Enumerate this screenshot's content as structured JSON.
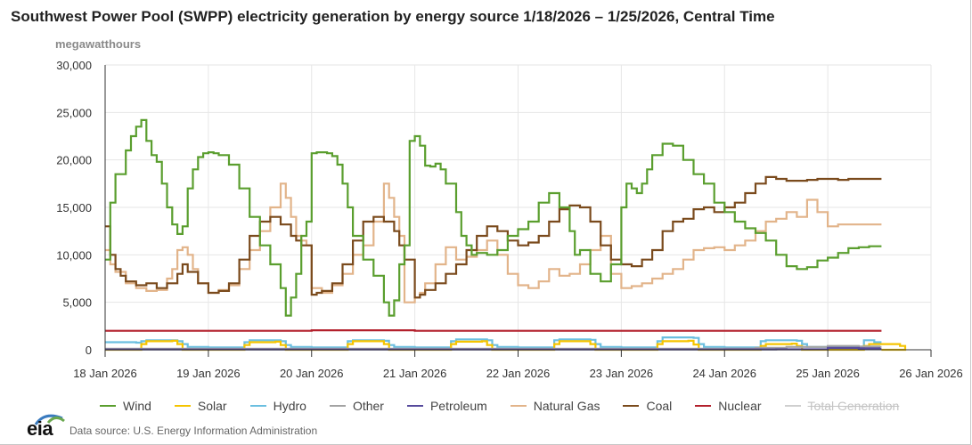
{
  "title": "Southwest Power Pool (SWPP) electricity generation by energy source 1/18/2026 – 1/25/2026, Central Time",
  "units": "megawatthours",
  "source_text": "Data source: U.S. Energy Information Administration",
  "logo_text": "eia",
  "chart_data": {
    "type": "line",
    "title": "Southwest Power Pool (SWPP) electricity generation by energy source 1/18/2026 – 1/25/2026, Central Time",
    "ylabel": "megawatthours",
    "xlabel": "",
    "ylim": [
      0,
      30000
    ],
    "yticks": [
      0,
      5000,
      10000,
      15000,
      20000,
      25000,
      30000
    ],
    "ytick_labels": [
      "0",
      "5,000",
      "10,000",
      "15,000",
      "20,000",
      "25,000",
      "30,000"
    ],
    "xlim_days": [
      0,
      8
    ],
    "xtick_labels": [
      "18 Jan 2026",
      "19 Jan 2026",
      "20 Jan 2026",
      "21 Jan 2026",
      "22 Jan 2026",
      "23 Jan 2026",
      "24 Jan 2026",
      "25 Jan 2026",
      "26 Jan 2026"
    ],
    "grid": true,
    "legend_position": "bottom",
    "series": [
      {
        "name": "Wind",
        "color": "#5a9e2e",
        "enabled": true,
        "x": [
          0,
          0.05,
          0.1,
          0.2,
          0.25,
          0.3,
          0.35,
          0.4,
          0.45,
          0.5,
          0.55,
          0.6,
          0.65,
          0.7,
          0.75,
          0.8,
          0.85,
          0.9,
          0.95,
          1.0,
          1.05,
          1.1,
          1.2,
          1.3,
          1.4,
          1.5,
          1.6,
          1.7,
          1.75,
          1.8,
          1.85,
          1.9,
          1.95,
          2.0,
          2.05,
          2.1,
          2.15,
          2.2,
          2.25,
          2.3,
          2.35,
          2.4,
          2.5,
          2.6,
          2.7,
          2.75,
          2.8,
          2.85,
          2.9,
          2.95,
          3.0,
          3.05,
          3.1,
          3.15,
          3.2,
          3.25,
          3.3,
          3.4,
          3.45,
          3.5,
          3.55,
          3.6,
          3.7,
          3.8,
          3.9,
          4.0,
          4.1,
          4.2,
          4.3,
          4.4,
          4.5,
          4.55,
          4.6,
          4.7,
          4.8,
          4.9,
          5.0,
          5.05,
          5.1,
          5.15,
          5.2,
          5.25,
          5.3,
          5.4,
          5.5,
          5.6,
          5.7,
          5.8,
          5.9,
          6.0,
          6.1,
          6.2,
          6.3,
          6.4,
          6.5,
          6.6,
          6.7,
          6.8,
          6.9,
          7.0,
          7.1,
          7.2,
          7.3,
          7.4,
          7.5
        ],
        "values": [
          9500,
          15500,
          18500,
          21000,
          22500,
          23500,
          24200,
          22000,
          20500,
          19800,
          17500,
          15000,
          13200,
          12200,
          13000,
          17000,
          19000,
          20300,
          20700,
          20800,
          20700,
          20500,
          19500,
          17000,
          14000,
          11000,
          9000,
          6500,
          3600,
          5500,
          8000,
          12000,
          13500,
          20700,
          20800,
          20800,
          20700,
          20400,
          19500,
          17500,
          15000,
          12000,
          9500,
          7800,
          5000,
          3600,
          5200,
          9000,
          11000,
          22000,
          22500,
          21500,
          19400,
          19300,
          19600,
          19000,
          17500,
          14500,
          12000,
          11000,
          10000,
          10200,
          10000,
          10500,
          12000,
          12700,
          13500,
          15500,
          16500,
          15000,
          12500,
          10000,
          10500,
          8000,
          7200,
          9000,
          15000,
          17500,
          17000,
          16500,
          17500,
          19000,
          20500,
          21700,
          21500,
          20000,
          18500,
          17500,
          15500,
          14500,
          13500,
          12800,
          12300,
          11500,
          10000,
          8800,
          8500,
          8700,
          9400,
          9700,
          10200,
          10700,
          10800,
          10900,
          10900
        ],
        "step_last_x": 7.52
      },
      {
        "name": "Solar",
        "color": "#f5c400",
        "enabled": true,
        "x": [
          0,
          0.3,
          0.35,
          0.4,
          0.65,
          0.7,
          0.75,
          1.0,
          1.3,
          1.35,
          1.4,
          1.65,
          1.7,
          1.75,
          2.0,
          2.3,
          2.35,
          2.4,
          2.65,
          2.7,
          2.75,
          3.0,
          3.3,
          3.35,
          3.4,
          3.65,
          3.7,
          3.75,
          4.0,
          4.3,
          4.35,
          4.4,
          4.65,
          4.7,
          4.75,
          5.0,
          5.3,
          5.35,
          5.4,
          5.65,
          5.7,
          5.75,
          6.0,
          6.3,
          6.35,
          6.4,
          6.65,
          6.7,
          6.75,
          7.0,
          7.3,
          7.35,
          7.4,
          7.65,
          7.7,
          7.75
        ],
        "values": [
          0,
          0,
          600,
          900,
          950,
          600,
          0,
          0,
          0,
          500,
          800,
          850,
          500,
          0,
          0,
          0,
          600,
          900,
          900,
          600,
          0,
          0,
          0,
          600,
          850,
          900,
          500,
          0,
          0,
          0,
          600,
          900,
          900,
          600,
          0,
          0,
          0,
          600,
          900,
          950,
          550,
          0,
          0,
          0,
          400,
          600,
          650,
          400,
          0,
          0,
          0,
          400,
          600,
          600,
          400,
          0
        ],
        "step_last_x": 7.52
      },
      {
        "name": "Hydro",
        "color": "#6bbfe0",
        "enabled": true,
        "x": [
          0,
          0.3,
          0.35,
          0.4,
          0.7,
          0.75,
          0.8,
          1.0,
          1.35,
          1.4,
          1.7,
          1.75,
          1.8,
          2.0,
          2.35,
          2.4,
          2.7,
          2.75,
          2.8,
          3.0,
          3.35,
          3.4,
          3.7,
          3.75,
          3.8,
          4.0,
          4.35,
          4.4,
          4.7,
          4.75,
          4.8,
          5.0,
          5.35,
          5.4,
          5.7,
          5.75,
          5.8,
          6.0,
          6.35,
          6.4,
          6.7,
          6.75,
          6.8,
          7.0,
          7.35,
          7.45
        ],
        "values": [
          800,
          750,
          900,
          1000,
          900,
          600,
          300,
          250,
          800,
          1000,
          900,
          500,
          300,
          250,
          900,
          1000,
          950,
          500,
          300,
          250,
          900,
          1100,
          1000,
          500,
          300,
          250,
          1000,
          1100,
          1050,
          600,
          300,
          250,
          900,
          1300,
          1250,
          600,
          300,
          250,
          900,
          1000,
          950,
          600,
          300,
          250,
          1000,
          800
        ],
        "step_last_x": 7.52
      },
      {
        "name": "Other",
        "color": "#a3a3a3",
        "enabled": true,
        "x": [
          0,
          2,
          4,
          6,
          6.3,
          6.6,
          7,
          7.3,
          7.5
        ],
        "values": [
          100,
          100,
          100,
          120,
          200,
          300,
          400,
          350,
          300
        ],
        "step_last_x": 7.52
      },
      {
        "name": "Petroleum",
        "color": "#564a9c",
        "enabled": true,
        "x": [
          0,
          2,
          4,
          6,
          6.5,
          7,
          7.3,
          7.5
        ],
        "values": [
          30,
          30,
          30,
          40,
          50,
          200,
          150,
          80
        ],
        "step_last_x": 7.52
      },
      {
        "name": "Natural Gas",
        "color": "#e2b48a",
        "enabled": true,
        "x": [
          0,
          0.05,
          0.1,
          0.2,
          0.3,
          0.4,
          0.5,
          0.6,
          0.65,
          0.7,
          0.75,
          0.8,
          0.85,
          0.9,
          1.0,
          1.1,
          1.2,
          1.3,
          1.4,
          1.5,
          1.6,
          1.7,
          1.75,
          1.8,
          1.85,
          1.9,
          1.95,
          2.0,
          2.1,
          2.2,
          2.3,
          2.4,
          2.5,
          2.6,
          2.7,
          2.75,
          2.8,
          2.85,
          2.9,
          3.0,
          3.05,
          3.1,
          3.2,
          3.3,
          3.4,
          3.5,
          3.6,
          3.7,
          3.8,
          3.9,
          4.0,
          4.1,
          4.2,
          4.3,
          4.4,
          4.5,
          4.6,
          4.7,
          4.8,
          4.9,
          5.0,
          5.1,
          5.2,
          5.3,
          5.4,
          5.5,
          5.6,
          5.7,
          5.8,
          5.9,
          6.0,
          6.1,
          6.2,
          6.3,
          6.4,
          6.5,
          6.6,
          6.7,
          6.8,
          6.9,
          7.0,
          7.1,
          7.2,
          7.3,
          7.35,
          7.4,
          7.45,
          7.5
        ],
        "values": [
          10500,
          9000,
          8200,
          7000,
          6500,
          6200,
          6300,
          7500,
          8500,
          10500,
          10800,
          10000,
          8500,
          7000,
          6000,
          6300,
          6800,
          8500,
          10500,
          12500,
          15000,
          17500,
          16000,
          14000,
          12000,
          11500,
          11000,
          6500,
          6000,
          6800,
          8000,
          10000,
          11000,
          13500,
          17500,
          16000,
          14000,
          12000,
          5000,
          5500,
          6000,
          7000,
          9000,
          10800,
          9500,
          9800,
          10500,
          11500,
          10000,
          8000,
          6800,
          6500,
          7200,
          8500,
          7800,
          8000,
          9000,
          10500,
          12000,
          8000,
          6500,
          6700,
          7000,
          7500,
          8000,
          8500,
          9500,
          10500,
          10700,
          10800,
          10500,
          11000,
          11500,
          12500,
          13500,
          13800,
          14500,
          14000,
          15800,
          14500,
          13000,
          13200,
          13200,
          13200,
          13200,
          13200,
          13200,
          13200
        ],
        "step_last_x": 7.52
      },
      {
        "name": "Coal",
        "color": "#7a4a1c",
        "enabled": true,
        "x": [
          0,
          0.05,
          0.1,
          0.15,
          0.2,
          0.3,
          0.4,
          0.5,
          0.6,
          0.7,
          0.75,
          0.8,
          0.9,
          1.0,
          1.1,
          1.2,
          1.3,
          1.4,
          1.5,
          1.6,
          1.7,
          1.8,
          1.85,
          1.9,
          2.0,
          2.05,
          2.1,
          2.2,
          2.3,
          2.4,
          2.5,
          2.6,
          2.7,
          2.8,
          2.85,
          2.9,
          3.0,
          3.05,
          3.1,
          3.2,
          3.3,
          3.4,
          3.5,
          3.6,
          3.7,
          3.8,
          3.9,
          4.0,
          4.1,
          4.2,
          4.3,
          4.4,
          4.5,
          4.6,
          4.7,
          4.8,
          4.9,
          5.0,
          5.1,
          5.2,
          5.3,
          5.4,
          5.5,
          5.6,
          5.7,
          5.8,
          5.9,
          6.0,
          6.1,
          6.2,
          6.3,
          6.4,
          6.5,
          6.6,
          6.7,
          6.8,
          6.9,
          7.0,
          7.1,
          7.2,
          7.3,
          7.4,
          7.5
        ],
        "values": [
          13000,
          10000,
          8500,
          7800,
          7200,
          6800,
          7000,
          6500,
          7000,
          8000,
          9000,
          8200,
          7000,
          6000,
          6200,
          7000,
          9500,
          12000,
          13500,
          14000,
          13200,
          12000,
          11500,
          11000,
          5800,
          6000,
          6200,
          7000,
          9000,
          11500,
          13500,
          14000,
          13500,
          12500,
          11000,
          9500,
          5500,
          5800,
          6300,
          7000,
          8000,
          9000,
          10500,
          12000,
          13000,
          12500,
          11500,
          11000,
          11300,
          12000,
          13500,
          14800,
          15200,
          15000,
          13500,
          11000,
          9500,
          9000,
          8800,
          9500,
          10500,
          12500,
          13500,
          13800,
          14800,
          15000,
          14500,
          15000,
          15500,
          16500,
          17500,
          18200,
          18000,
          17800,
          17800,
          17900,
          18000,
          18000,
          17900,
          18000,
          18000,
          18000,
          18000
        ],
        "step_last_x": 7.52
      },
      {
        "name": "Nuclear",
        "color": "#b3202c",
        "enabled": true,
        "x": [
          0,
          1,
          2,
          3,
          4,
          5,
          6,
          7,
          7.5
        ],
        "values": [
          2000,
          2000,
          2050,
          2000,
          2000,
          2000,
          2000,
          2000,
          2000
        ],
        "step_last_x": 7.52
      },
      {
        "name": "Total Generation",
        "color": "#cccccc",
        "enabled": false,
        "x": [],
        "values": [],
        "step_last_x": 7.52
      }
    ]
  }
}
